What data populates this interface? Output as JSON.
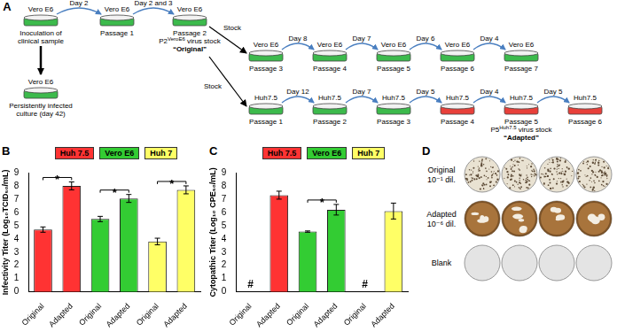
{
  "panel_a": {
    "letter": "A",
    "origin": {
      "cell": "Vero E6",
      "caption": "Inoculation of clinical sample",
      "color": "#3cba4c"
    },
    "persistent": {
      "cell": "Vero E6",
      "caption": "Persistently infected culture (day 42)",
      "color": "#3cba4c"
    },
    "initial_passages": [
      {
        "day": "Day 2",
        "cell": "Vero E6",
        "caption": "Passage 1",
        "color": "#3cba4c"
      },
      {
        "day": "Day 2 and 3",
        "cell": "Vero E6",
        "caption": "Passage 2",
        "color": "#3cba4c",
        "stock": {
          "prefix": "P2",
          "superscript": "VeroE6",
          "suffix": " virus stock"
        },
        "note": "“Original”"
      }
    ],
    "stock_label": "Stock",
    "branches": [
      {
        "passages": [
          {
            "cell": "Vero E6",
            "caption": "Passage 3",
            "color": "#3cba4c"
          },
          {
            "day": "Day 8",
            "cell": "Vero E6",
            "caption": "Passage 4",
            "color": "#3cba4c"
          },
          {
            "day": "Day 7",
            "cell": "Vero E6",
            "caption": "Passage 5",
            "color": "#3cba4c"
          },
          {
            "day": "Day 6",
            "cell": "Vero E6",
            "caption": "Passage 6",
            "color": "#3cba4c"
          },
          {
            "day": "Day 4",
            "cell": "Vero E6",
            "caption": "Passage 7",
            "color": "#3cba4c"
          }
        ]
      },
      {
        "passages": [
          {
            "cell": "Huh7.5",
            "caption": "Passage 1",
            "color": "#3cba4c"
          },
          {
            "day": "Day 12",
            "cell": "Huh7.5",
            "caption": "Passage 2",
            "color": "#3cba4c"
          },
          {
            "day": "Day 7",
            "cell": "Huh7.5",
            "caption": "Passage 3",
            "color": "#3cba4c"
          },
          {
            "day": "Day 5",
            "cell": "Huh7.5",
            "caption": "Passage 4",
            "color": "#e8403a"
          },
          {
            "day": "Day 4",
            "cell": "Huh7.5",
            "caption": "Passage 5",
            "color": "#e8403a",
            "stock": {
              "prefix": "P5",
              "superscript": "Huh7.5",
              "suffix": " virus stock"
            },
            "note": "“Adapted”"
          },
          {
            "day": "Day 5",
            "cell": "Huh7.5",
            "caption": "Passage 6",
            "color": "#e8403a"
          }
        ]
      }
    ]
  },
  "chart_data": [
    {
      "type": "bar",
      "letter": "B",
      "ylabel": "Infectivity Titer (Log₁₀TCID₅₀/mL)",
      "categories": [
        "Original",
        "Adapted",
        "Original",
        "Adapted",
        "Original",
        "Adapted"
      ],
      "ylim": [
        0,
        9
      ],
      "yticks": [
        0,
        1,
        2,
        3,
        4,
        5,
        6,
        7,
        8,
        9
      ],
      "grid": false,
      "legend": "top",
      "series": [
        {
          "name": "Huh 7.5",
          "color": "#ff3333",
          "values": [
            4.7,
            8.0,
            null,
            null,
            null,
            null
          ],
          "errors": [
            0.2,
            0.3,
            null,
            null,
            null,
            null
          ]
        },
        {
          "name": "Vero E6",
          "color": "#33cc33",
          "values": [
            null,
            null,
            5.5,
            7.05,
            null,
            null
          ],
          "errors": [
            null,
            null,
            0.2,
            0.3,
            null,
            null
          ]
        },
        {
          "name": "Huh 7",
          "color": "#ffff66",
          "values": [
            null,
            null,
            null,
            null,
            3.8,
            7.7
          ],
          "errors": [
            null,
            null,
            null,
            null,
            0.25,
            0.3
          ]
        }
      ],
      "significance": [
        {
          "between": [
            0,
            1
          ],
          "label": "*"
        },
        {
          "between": [
            2,
            3
          ],
          "label": "*"
        },
        {
          "between": [
            4,
            5
          ],
          "label": "*"
        }
      ]
    },
    {
      "type": "bar",
      "letter": "C",
      "ylabel": "Cytopathic Titer (Log₁₀ CPE₅₀/mL)",
      "categories": [
        "Original",
        "Adapted",
        "Original",
        "Adapted",
        "Original",
        "Adapted"
      ],
      "ylim": [
        0,
        9
      ],
      "yticks": [
        0,
        1,
        2,
        3,
        4,
        5,
        6,
        7,
        8,
        9
      ],
      "grid": false,
      "legend": "top",
      "series": [
        {
          "name": "Huh 7.5",
          "color": "#ff3333",
          "values": [
            null,
            7.3,
            null,
            null,
            null,
            null
          ],
          "errors": [
            null,
            0.3,
            null,
            null,
            null,
            null
          ],
          "value_labels": [
            "#",
            null,
            null,
            null,
            null,
            null
          ]
        },
        {
          "name": "Vero E6",
          "color": "#33cc33",
          "values": [
            null,
            null,
            4.55,
            6.2,
            null,
            null
          ],
          "errors": [
            null,
            null,
            0.05,
            0.4,
            null,
            null
          ]
        },
        {
          "name": "Huh 7",
          "color": "#ffff66",
          "values": [
            null,
            null,
            null,
            null,
            null,
            6.1
          ],
          "errors": [
            null,
            null,
            null,
            null,
            null,
            0.6
          ],
          "value_labels": [
            null,
            null,
            null,
            null,
            "#",
            null
          ]
        }
      ],
      "significance": [
        {
          "between": [
            2,
            3
          ],
          "label": "*"
        }
      ]
    }
  ],
  "panel_d": {
    "letter": "D",
    "rows": [
      {
        "label": "Original",
        "dilution": "10⁻¹ dil.",
        "plates": 4,
        "color": "#e9e2d2"
      },
      {
        "label": "Adapted",
        "dilution": "10⁻⁶ dil.",
        "plates": 4,
        "color": "#a8743c"
      },
      {
        "label": "Blank",
        "plates": 4,
        "color": "#e4e4e4"
      }
    ]
  }
}
